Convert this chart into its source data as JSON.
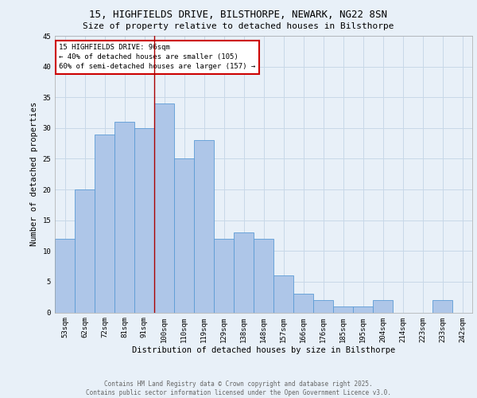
{
  "title_line1": "15, HIGHFIELDS DRIVE, BILSTHORPE, NEWARK, NG22 8SN",
  "title_line2": "Size of property relative to detached houses in Bilsthorpe",
  "xlabel": "Distribution of detached houses by size in Bilsthorpe",
  "ylabel": "Number of detached properties",
  "categories": [
    "53sqm",
    "62sqm",
    "72sqm",
    "81sqm",
    "91sqm",
    "100sqm",
    "110sqm",
    "119sqm",
    "129sqm",
    "138sqm",
    "148sqm",
    "157sqm",
    "166sqm",
    "176sqm",
    "185sqm",
    "195sqm",
    "204sqm",
    "214sqm",
    "223sqm",
    "233sqm",
    "242sqm"
  ],
  "values": [
    12,
    20,
    29,
    31,
    30,
    34,
    25,
    28,
    12,
    13,
    12,
    6,
    3,
    2,
    1,
    1,
    2,
    0,
    0,
    2,
    0
  ],
  "bar_color": "#aec6e8",
  "bar_edge_color": "#5b9bd5",
  "grid_color": "#c8d8e8",
  "background_color": "#e8f0f8",
  "annotation_text": "15 HIGHFIELDS DRIVE: 96sqm\n← 40% of detached houses are smaller (105)\n60% of semi-detached houses are larger (157) →",
  "annotation_box_color": "#ffffff",
  "annotation_box_edge": "#cc0000",
  "vline_x_index": 4.5,
  "vline_color": "#aa0000",
  "ylim": [
    0,
    45
  ],
  "yticks": [
    0,
    5,
    10,
    15,
    20,
    25,
    30,
    35,
    40,
    45
  ],
  "footer_text": "Contains HM Land Registry data © Crown copyright and database right 2025.\nContains public sector information licensed under the Open Government Licence v3.0.",
  "title_fontsize": 9,
  "subtitle_fontsize": 8,
  "axis_label_fontsize": 7.5,
  "tick_fontsize": 6.5,
  "annotation_fontsize": 6.5,
  "footer_fontsize": 5.5
}
